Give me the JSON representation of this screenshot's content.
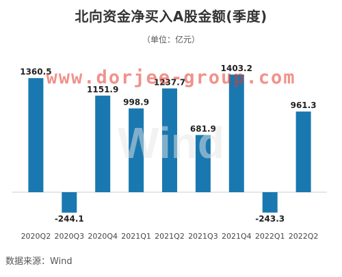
{
  "title": "北向资金净买入A股金额(季度)",
  "unit_note": "（单位：亿元）",
  "source": "数据来源：Wind",
  "watermark": {
    "url_text": "www.dorjee-group.com",
    "logo_text": "Wind"
  },
  "colors": {
    "bar": "#1a78b0",
    "axis": "#cccccc",
    "watermark": "#e33a2e"
  },
  "chart_data": {
    "type": "bar",
    "title": "北向资金净买入A股金额(季度)",
    "ylabel": "（单位：亿元）",
    "xlabel": "",
    "categories": [
      "2020Q2",
      "2020Q3",
      "2020Q4",
      "2021Q1",
      "2021Q2",
      "2021Q3",
      "2021Q4",
      "2022Q1",
      "2022Q2"
    ],
    "values": [
      1360.5,
      -244.1,
      1151.9,
      998.9,
      1237.7,
      681.9,
      1403.2,
      -243.3,
      961.3
    ],
    "value_labels": [
      "1360.5",
      "-244.1",
      "1151.9",
      "998.9",
      "1237.7",
      "681.9",
      "1403.2",
      "-243.3",
      "961.3"
    ],
    "ylim": [
      -400,
      1600
    ],
    "grid": false,
    "legend": "none"
  }
}
